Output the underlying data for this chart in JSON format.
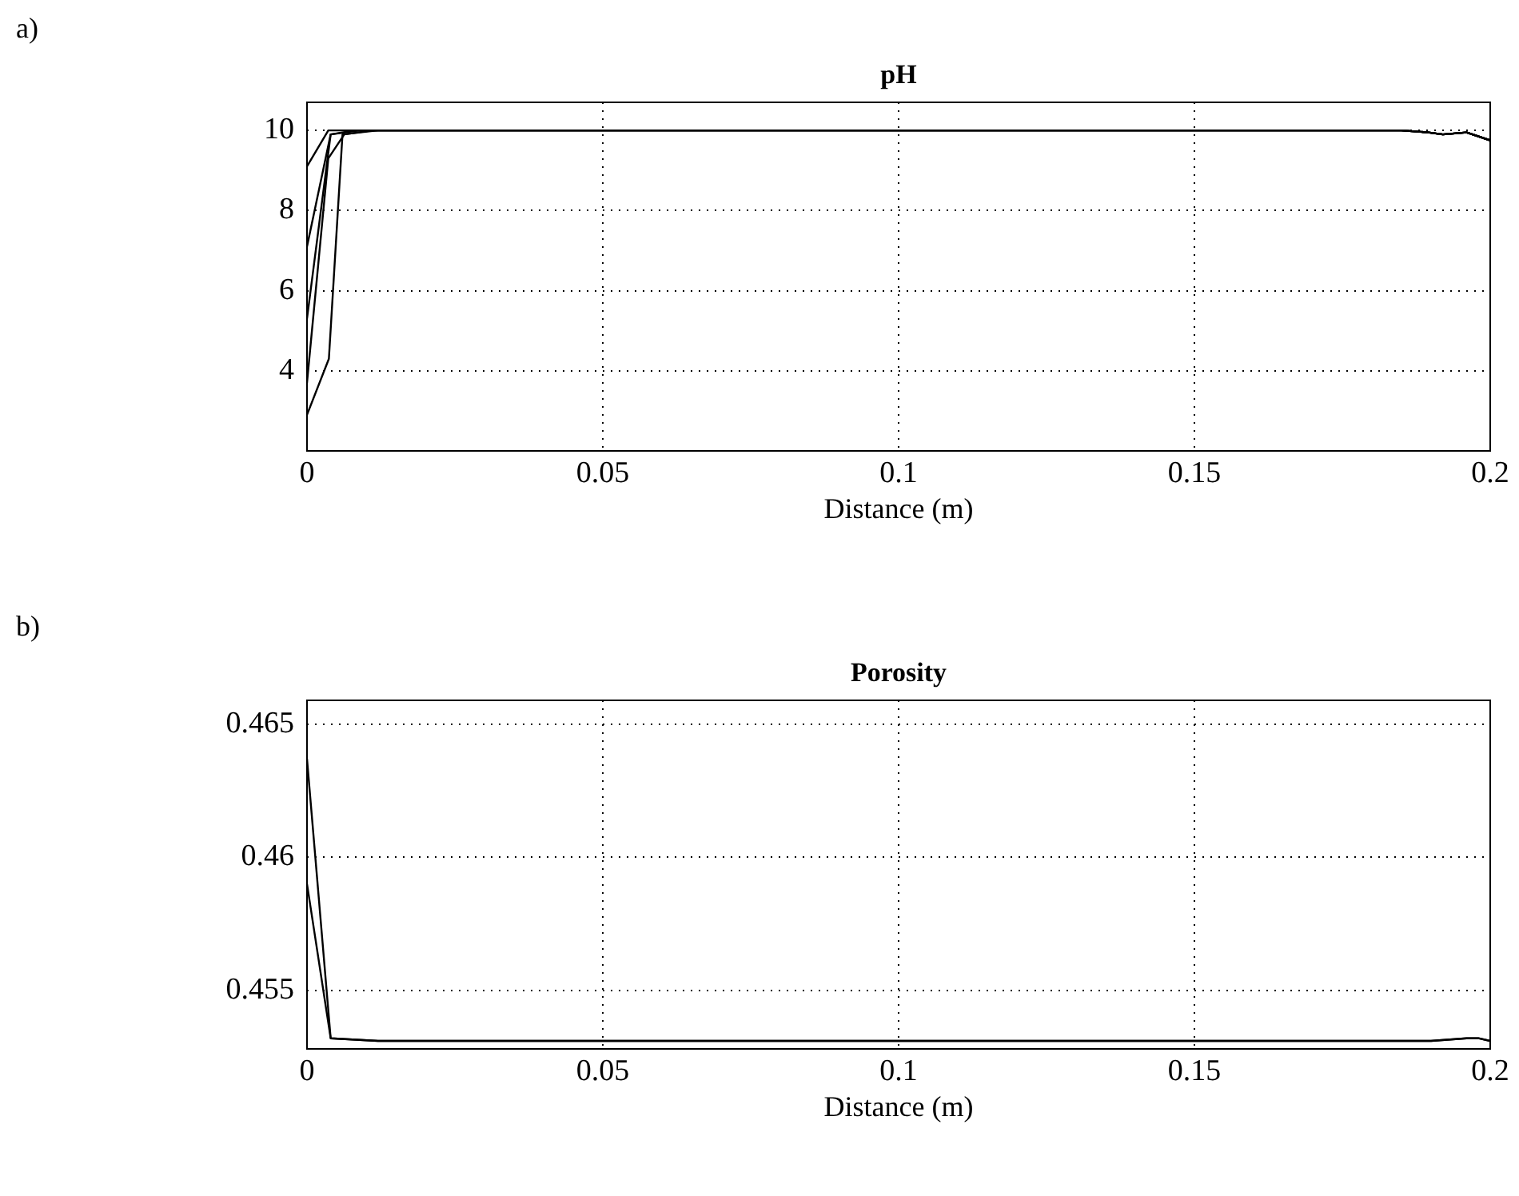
{
  "chart_data": [
    {
      "type": "line",
      "title": "pH",
      "xlabel": "Distance (m)",
      "annotations": [
        "a)"
      ],
      "marker": "none",
      "grid": true,
      "xlim": [
        0,
        0.2
      ],
      "xticks": [
        0,
        0.05,
        0.1,
        0.15,
        0.2
      ],
      "ylim": [
        2,
        10.7
      ],
      "yticks": [
        4,
        6,
        8,
        10
      ],
      "series": [
        {
          "color": "#000000",
          "x": [
            0,
            0.0036,
            0.185,
            0.1895,
            0.192,
            0.196,
            0.2
          ],
          "values": [
            9.1,
            10,
            10,
            9.95,
            9.9,
            9.95,
            9.75
          ]
        },
        {
          "color": "#000000",
          "x": [
            0,
            0.004,
            0.008,
            0.185,
            0.1895,
            0.192,
            0.196,
            0.2
          ],
          "values": [
            7.1,
            9.9,
            10,
            10,
            9.95,
            9.9,
            9.95,
            9.75
          ]
        },
        {
          "color": "#000000",
          "x": [
            0,
            0.004,
            0.009,
            0.185,
            0.1895,
            0.192,
            0.196,
            0.2
          ],
          "values": [
            5.3,
            9.9,
            10,
            10,
            9.95,
            9.9,
            9.95,
            9.75
          ]
        },
        {
          "color": "#000000",
          "x": [
            0,
            0.0036,
            0.0063,
            0.011,
            0.185,
            0.1895,
            0.192,
            0.196,
            0.2
          ],
          "values": [
            3.7,
            9.3,
            9.9,
            10,
            10,
            9.95,
            9.9,
            9.95,
            9.75
          ]
        },
        {
          "color": "#000000",
          "x": [
            0,
            0.0037,
            0.006,
            0.012,
            0.185,
            0.1895,
            0.192,
            0.196,
            0.2
          ],
          "values": [
            2.9,
            4.3,
            9.9,
            10,
            10,
            9.95,
            9.9,
            9.95,
            9.75
          ]
        }
      ]
    },
    {
      "type": "line",
      "title": "Porosity",
      "xlabel": "Distance (m)",
      "annotations": [
        "b)"
      ],
      "marker": "none",
      "grid": true,
      "xlim": [
        0,
        0.2
      ],
      "xticks": [
        0,
        0.05,
        0.1,
        0.15,
        0.2
      ],
      "ylim": [
        0.4528,
        0.4659
      ],
      "yticks": [
        0.455,
        0.46,
        0.465
      ],
      "series": [
        {
          "color": "#000000",
          "x": [
            0,
            0.004,
            0.012,
            0.19,
            0.196,
            0.198,
            0.2
          ],
          "values": [
            0.4637,
            0.4532,
            0.4531,
            0.4531,
            0.4532,
            0.4532,
            0.4531
          ]
        },
        {
          "color": "#000000",
          "x": [
            0,
            0.004,
            0.012,
            0.19,
            0.196,
            0.198,
            0.2
          ],
          "values": [
            0.459,
            0.4532,
            0.4531,
            0.4531,
            0.4532,
            0.4532,
            0.4531
          ]
        }
      ]
    }
  ]
}
